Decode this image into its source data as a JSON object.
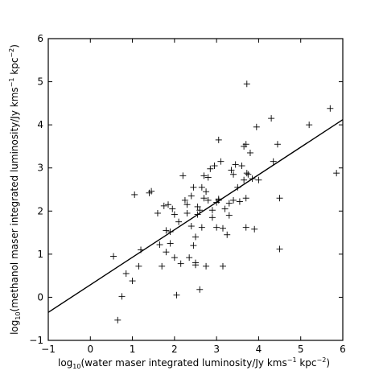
{
  "chart_data": {
    "type": "scatter",
    "xlabel": {
      "text": "log",
      "sub": "10",
      "rest": "(water maser integrated luminosity/Jy kms",
      "sup1": "−1",
      "mid": " kpc",
      "sup2": "−2",
      "end": ")"
    },
    "ylabel": {
      "text": "log",
      "sub": "10",
      "rest": "(methanol maser integrated luminosity/Jy kms",
      "sup1": "−1",
      "mid": " kpc",
      "sup2": "−2",
      "end": ")"
    },
    "xlim": [
      -1,
      6
    ],
    "ylim": [
      -1,
      6
    ],
    "xticks": [
      "−1",
      "0",
      "1",
      "2",
      "3",
      "4",
      "5",
      "6"
    ],
    "yticks": [
      "−1",
      "0",
      "1",
      "2",
      "3",
      "4",
      "5",
      "6"
    ],
    "marker": "+",
    "points": [
      [
        0.55,
        0.95
      ],
      [
        0.65,
        -0.53
      ],
      [
        0.75,
        0.02
      ],
      [
        0.85,
        0.55
      ],
      [
        1.0,
        0.38
      ],
      [
        1.05,
        2.38
      ],
      [
        1.15,
        0.72
      ],
      [
        1.2,
        1.1
      ],
      [
        1.4,
        2.42
      ],
      [
        1.45,
        2.46
      ],
      [
        1.6,
        1.95
      ],
      [
        1.65,
        1.22
      ],
      [
        1.7,
        0.72
      ],
      [
        1.75,
        2.12
      ],
      [
        1.8,
        1.55
      ],
      [
        1.8,
        1.05
      ],
      [
        1.85,
        2.15
      ],
      [
        1.9,
        1.25
      ],
      [
        1.9,
        1.52
      ],
      [
        1.95,
        2.05
      ],
      [
        2.0,
        1.92
      ],
      [
        2.0,
        0.92
      ],
      [
        2.05,
        0.05
      ],
      [
        2.1,
        1.75
      ],
      [
        2.15,
        0.78
      ],
      [
        2.2,
        2.82
      ],
      [
        2.25,
        2.25
      ],
      [
        2.3,
        2.15
      ],
      [
        2.3,
        1.95
      ],
      [
        2.35,
        0.92
      ],
      [
        2.4,
        1.65
      ],
      [
        2.4,
        2.35
      ],
      [
        2.45,
        2.55
      ],
      [
        2.45,
        1.2
      ],
      [
        2.5,
        1.4
      ],
      [
        2.5,
        0.75
      ],
      [
        2.5,
        0.8
      ],
      [
        2.55,
        2.1
      ],
      [
        2.55,
        1.92
      ],
      [
        2.6,
        0.18
      ],
      [
        2.6,
        2.02
      ],
      [
        2.65,
        1.62
      ],
      [
        2.65,
        2.55
      ],
      [
        2.7,
        2.3
      ],
      [
        2.7,
        2.82
      ],
      [
        2.75,
        2.45
      ],
      [
        2.75,
        0.72
      ],
      [
        2.8,
        2.78
      ],
      [
        2.8,
        2.25
      ],
      [
        2.85,
        2.98
      ],
      [
        2.9,
        1.85
      ],
      [
        2.9,
        2.02
      ],
      [
        2.95,
        3.05
      ],
      [
        3.0,
        1.62
      ],
      [
        3.0,
        2.2
      ],
      [
        3.05,
        2.25
      ],
      [
        3.05,
        2.28
      ],
      [
        3.05,
        3.65
      ],
      [
        3.1,
        3.15
      ],
      [
        3.15,
        1.6
      ],
      [
        3.15,
        0.72
      ],
      [
        3.2,
        2.05
      ],
      [
        3.25,
        1.45
      ],
      [
        3.3,
        2.18
      ],
      [
        3.3,
        1.9
      ],
      [
        3.35,
        2.95
      ],
      [
        3.4,
        2.85
      ],
      [
        3.4,
        2.25
      ],
      [
        3.45,
        3.08
      ],
      [
        3.5,
        2.55
      ],
      [
        3.55,
        2.22
      ],
      [
        3.6,
        3.05
      ],
      [
        3.65,
        2.72
      ],
      [
        3.65,
        3.5
      ],
      [
        3.7,
        3.55
      ],
      [
        3.7,
        1.62
      ],
      [
        3.7,
        2.3
      ],
      [
        3.72,
        2.88
      ],
      [
        3.72,
        4.95
      ],
      [
        3.75,
        2.85
      ],
      [
        3.8,
        3.35
      ],
      [
        3.85,
        2.75
      ],
      [
        3.9,
        1.58
      ],
      [
        3.95,
        3.95
      ],
      [
        4.0,
        2.72
      ],
      [
        4.3,
        4.15
      ],
      [
        4.35,
        3.15
      ],
      [
        4.45,
        3.55
      ],
      [
        4.5,
        2.3
      ],
      [
        4.5,
        1.12
      ],
      [
        5.2,
        4.0
      ],
      [
        5.7,
        4.38
      ],
      [
        5.85,
        2.88
      ]
    ],
    "fit_line": {
      "x": [
        -1,
        6
      ],
      "y": [
        -0.35,
        4.12
      ]
    }
  }
}
